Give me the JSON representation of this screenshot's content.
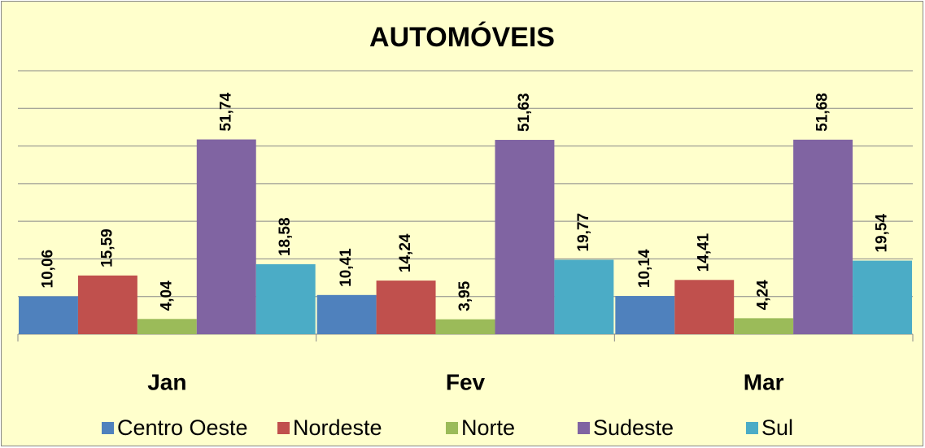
{
  "chart_data": {
    "type": "bar",
    "title": "AUTOMÓVEIS",
    "categories": [
      "Jan",
      "Fev",
      "Mar"
    ],
    "series": [
      {
        "name": "Centro Oeste",
        "color": "#4f81bd",
        "values": [
          10.06,
          10.41,
          10.14
        ],
        "value_labels": [
          "10,06",
          "10,41",
          "10,14"
        ]
      },
      {
        "name": "Nordeste",
        "color": "#c0504d",
        "values": [
          15.59,
          14.24,
          14.41
        ],
        "value_labels": [
          "15,59",
          "14,24",
          "14,41"
        ]
      },
      {
        "name": "Norte",
        "color": "#9bbb59",
        "values": [
          4.04,
          3.95,
          4.24
        ],
        "value_labels": [
          "4,04",
          "3,95",
          "4,24"
        ]
      },
      {
        "name": "Sudeste",
        "color": "#8064a2",
        "values": [
          51.74,
          51.63,
          51.68
        ],
        "value_labels": [
          "51,74",
          "51,63",
          "51,68"
        ]
      },
      {
        "name": "Sul",
        "color": "#4bacc6",
        "values": [
          18.58,
          19.77,
          19.54
        ],
        "value_labels": [
          "18,58",
          "19,77",
          "19,54"
        ]
      }
    ],
    "ylim": [
      0,
      70
    ],
    "yticks": [
      0,
      10,
      20,
      30,
      40,
      50,
      60,
      70
    ],
    "grid": true,
    "legend": "bottom"
  }
}
